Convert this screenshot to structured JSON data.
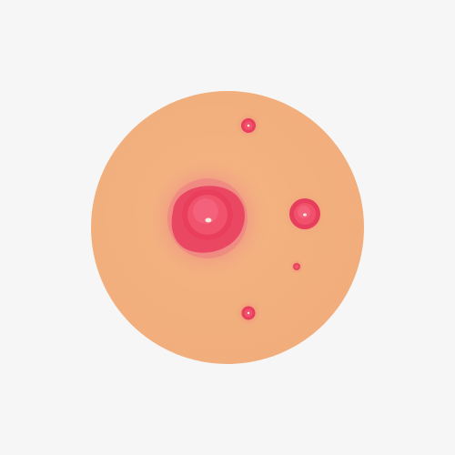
{
  "illustration": {
    "subject": "skin-circle-with-red-pimples",
    "colors": {
      "background": "#f6f6f6",
      "skin": "#f2b07f",
      "inflammation": "#ec6a78",
      "pimple_ring": "#e83a5a",
      "pimple_core": "#f1516b",
      "highlight": "#f7eadf"
    },
    "lesions": [
      {
        "kind": "large-pimple"
      },
      {
        "kind": "medium-pimple"
      },
      {
        "kind": "small-pimple"
      },
      {
        "kind": "small-pimple"
      },
      {
        "kind": "tiny-spot"
      }
    ]
  }
}
